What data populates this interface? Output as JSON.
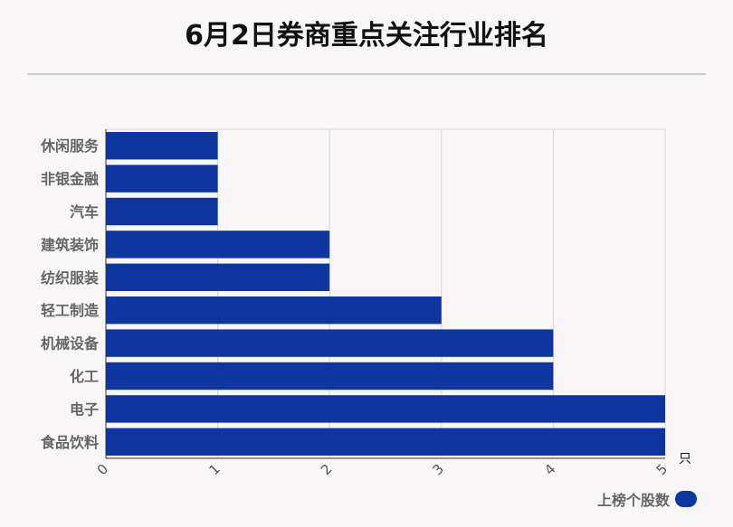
{
  "title": "6月2日券商重点关注行业排名",
  "chart_data": {
    "type": "bar",
    "orientation": "horizontal",
    "categories": [
      "休闲服务",
      "非银金融",
      "汽车",
      "建筑装饰",
      "纺织服装",
      "轻工制造",
      "机械设备",
      "化工",
      "电子",
      "食品饮料"
    ],
    "series": [
      {
        "name": "上榜个股数",
        "values": [
          1,
          1,
          1,
          2,
          2,
          3,
          4,
          4,
          5,
          5
        ]
      }
    ],
    "xlim": [
      0,
      5
    ],
    "xticks": [
      "0",
      "1",
      "2",
      "3",
      "4",
      "5"
    ],
    "xunit": "只",
    "grid": true,
    "legend_position": "bottom-right",
    "bar_color": "#0e36a0"
  },
  "legend": {
    "label": "上榜个股数"
  }
}
